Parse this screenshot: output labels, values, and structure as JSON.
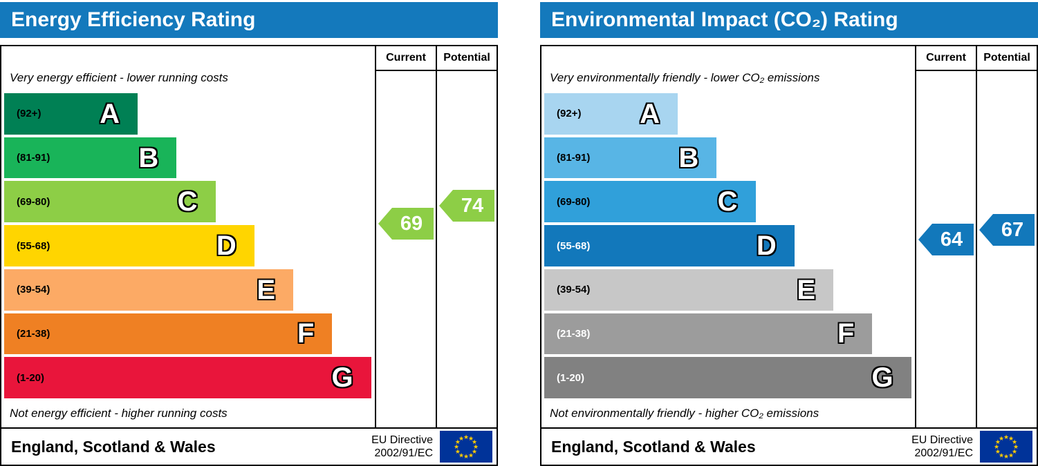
{
  "chart_data": [
    {
      "type": "bar",
      "title": "Energy Efficiency Rating",
      "columns": {
        "current": "Current",
        "potential": "Potential"
      },
      "top_note": "Very energy efficient - lower running costs",
      "bottom_note": "Not energy efficient - higher running costs",
      "bands": [
        {
          "letter": "A",
          "range": "(92+)",
          "min": 92,
          "max": 100,
          "color": "#008054",
          "width_pct": 36,
          "range_color": "#000000"
        },
        {
          "letter": "B",
          "range": "(81-91)",
          "min": 81,
          "max": 91,
          "color": "#19b459",
          "width_pct": 46.5,
          "range_color": "#000000"
        },
        {
          "letter": "C",
          "range": "(69-80)",
          "min": 69,
          "max": 80,
          "color": "#8dce46",
          "width_pct": 57,
          "range_color": "#000000"
        },
        {
          "letter": "D",
          "range": "(55-68)",
          "min": 55,
          "max": 68,
          "color": "#ffd500",
          "width_pct": 67.5,
          "range_color": "#000000"
        },
        {
          "letter": "E",
          "range": "(39-54)",
          "min": 39,
          "max": 54,
          "color": "#fcaa65",
          "width_pct": 78,
          "range_color": "#000000"
        },
        {
          "letter": "F",
          "range": "(21-38)",
          "min": 21,
          "max": 38,
          "color": "#ef8023",
          "width_pct": 88.5,
          "range_color": "#000000"
        },
        {
          "letter": "G",
          "range": "(1-20)",
          "min": 1,
          "max": 20,
          "color": "#e9153b",
          "width_pct": 99,
          "range_color": "#000000"
        }
      ],
      "current": {
        "value": 69,
        "color": "#8dce46"
      },
      "potential": {
        "value": 74,
        "color": "#8dce46"
      },
      "footer": {
        "region": "England, Scotland & Wales",
        "directive_line1": "EU Directive",
        "directive_line2": "2002/91/EC",
        "flag_icon": "eu-flag-icon",
        "flag_blue": "#003399",
        "flag_star": "#ffcc00"
      },
      "header_color": "#1479bc"
    },
    {
      "type": "bar",
      "title": "Environmental Impact (CO₂) Rating",
      "columns": {
        "current": "Current",
        "potential": "Potential"
      },
      "top_note": "Very environmentally friendly - lower CO₂ emissions",
      "bottom_note": "Not environmentally friendly - higher CO₂ emissions",
      "bands": [
        {
          "letter": "A",
          "range": "(92+)",
          "min": 92,
          "max": 100,
          "color": "#a8d5f0",
          "width_pct": 36,
          "range_color": "#000000"
        },
        {
          "letter": "B",
          "range": "(81-91)",
          "min": 81,
          "max": 91,
          "color": "#58b5e5",
          "width_pct": 46.5,
          "range_color": "#000000"
        },
        {
          "letter": "C",
          "range": "(69-80)",
          "min": 69,
          "max": 80,
          "color": "#30a0da",
          "width_pct": 57,
          "range_color": "#000000"
        },
        {
          "letter": "D",
          "range": "(55-68)",
          "min": 55,
          "max": 68,
          "color": "#1278bb",
          "width_pct": 67.5,
          "range_color": "#ffffff"
        },
        {
          "letter": "E",
          "range": "(39-54)",
          "min": 39,
          "max": 54,
          "color": "#c7c7c7",
          "width_pct": 78,
          "range_color": "#000000"
        },
        {
          "letter": "F",
          "range": "(21-38)",
          "min": 21,
          "max": 38,
          "color": "#9c9c9c",
          "width_pct": 88.5,
          "range_color": "#ffffff"
        },
        {
          "letter": "G",
          "range": "(1-20)",
          "min": 1,
          "max": 20,
          "color": "#818181",
          "width_pct": 99,
          "range_color": "#ffffff"
        }
      ],
      "current": {
        "value": 64,
        "color": "#1278bb"
      },
      "potential": {
        "value": 67,
        "color": "#1278bb"
      },
      "footer": {
        "region": "England, Scotland & Wales",
        "directive_line1": "EU Directive",
        "directive_line2": "2002/91/EC",
        "flag_icon": "eu-flag-icon",
        "flag_blue": "#003399",
        "flag_star": "#ffcc00"
      },
      "header_color": "#1479bc"
    }
  ]
}
